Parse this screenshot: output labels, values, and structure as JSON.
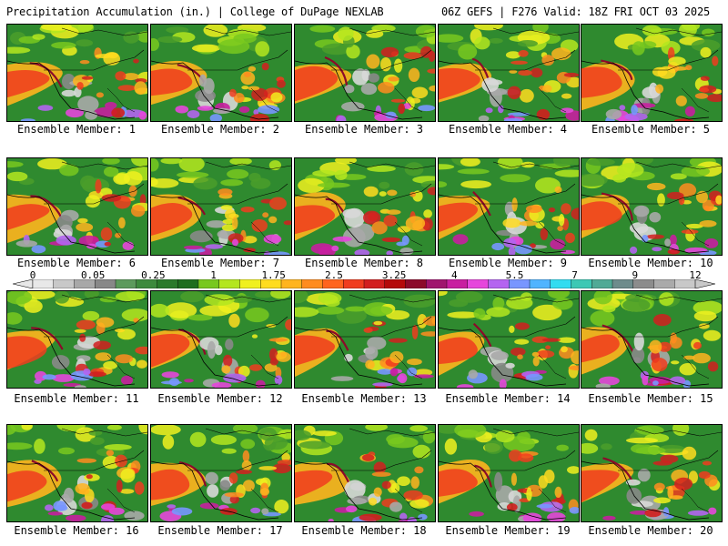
{
  "header": {
    "left": "Precipitation Accumulation (in.) | College of DuPage NEXLAB",
    "right": "06Z GEFS | F276 Valid: 18Z FRI OCT 03 2025"
  },
  "panels": [
    {
      "label": "Ensemble Member: 1"
    },
    {
      "label": "Ensemble Member: 2"
    },
    {
      "label": "Ensemble Member: 3"
    },
    {
      "label": "Ensemble Member: 4"
    },
    {
      "label": "Ensemble Member: 5"
    },
    {
      "label": "Ensemble Member: 6"
    },
    {
      "label": "Ensemble Member: 7"
    },
    {
      "label": "Ensemble Member: 8"
    },
    {
      "label": "Ensemble Member: 9"
    },
    {
      "label": "Ensemble Member: 10"
    },
    {
      "label": "Ensemble Member: 11"
    },
    {
      "label": "Ensemble Member: 12"
    },
    {
      "label": "Ensemble Member: 13"
    },
    {
      "label": "Ensemble Member: 14"
    },
    {
      "label": "Ensemble Member: 15"
    },
    {
      "label": "Ensemble Member: 16"
    },
    {
      "label": "Ensemble Member: 17"
    },
    {
      "label": "Ensemble Member: 18"
    },
    {
      "label": "Ensemble Member: 19"
    },
    {
      "label": "Ensemble Member: 20"
    }
  ],
  "colorbar": {
    "tick_labels": [
      "0",
      "0.05",
      "0.25",
      "1",
      "1.75",
      "2.5",
      "3.25",
      "4",
      "5.5",
      "7",
      "9",
      "12"
    ],
    "colors": [
      "#e8e8e8",
      "#c8c8c8",
      "#a8a8a8",
      "#888888",
      "#5c9a5c",
      "#3d8a3d",
      "#2a7a2a",
      "#1e6e1e",
      "#78c81e",
      "#b4e61e",
      "#f0f01e",
      "#ffdc1e",
      "#ffb41e",
      "#ff8c1e",
      "#ff641e",
      "#f03c1e",
      "#d21e1e",
      "#b40a0a",
      "#8c0a2a",
      "#a0146e",
      "#c81ea0",
      "#e646dc",
      "#b464f0",
      "#7896ff",
      "#50b4ff",
      "#32dcf0",
      "#3cc8b4",
      "#50aa96",
      "#6e8c8c",
      "#8c8c8c",
      "#aaaaaa",
      "#c8c8c8"
    ]
  }
}
